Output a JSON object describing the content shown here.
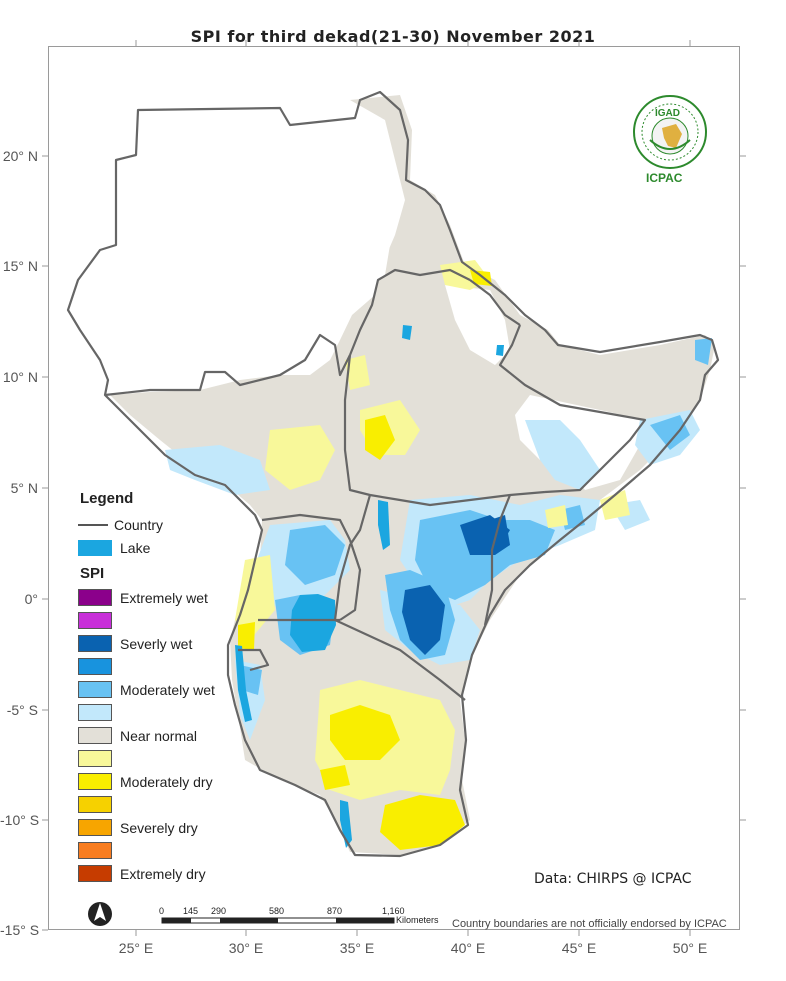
{
  "title": "SPI   for   third dekad(21-30)  November  2021",
  "lat_labels": [
    "20° N",
    "15° N",
    "10° N",
    "5° N",
    "0°",
    "-5° S",
    "-10° S",
    "-15° S"
  ],
  "lon_labels": [
    "25° E",
    "30° E",
    "35° E",
    "40° E",
    "45° E",
    "50° E"
  ],
  "legend": {
    "title": "Legend",
    "country_label": "Country",
    "lake_label": "Lake",
    "spi_title": "SPI",
    "classes": [
      {
        "label": "Extremely wet",
        "color": "#8b008b"
      },
      {
        "label": "",
        "color": "#c82fd9"
      },
      {
        "label": "Severly wet",
        "color": "#0a62b0"
      },
      {
        "label": "",
        "color": "#1893de"
      },
      {
        "label": "Moderately wet",
        "color": "#68c2f3"
      },
      {
        "label": "",
        "color": "#c2e8fb"
      },
      {
        "label": "Near normal",
        "color": "#e3e0d8"
      },
      {
        "label": "",
        "color": "#f8f89a"
      },
      {
        "label": "Moderately dry",
        "color": "#f9ee00"
      },
      {
        "label": "",
        "color": "#f6d100"
      },
      {
        "label": "Severely dry",
        "color": "#f7a500"
      },
      {
        "label": "",
        "color": "#f87d20"
      },
      {
        "label": "Extremely dry",
        "color": "#c63c00"
      }
    ]
  },
  "logo": {
    "org_short": "ICPAC",
    "badge_text": "IGAD"
  },
  "data_credit": "Data: CHIRPS @ ICPAC",
  "disclaimer": "Country boundaries are not officially endorsed by ICPAC",
  "scale_bar": {
    "ticks": [
      "0",
      "145",
      "290",
      "580",
      "870",
      "1,160"
    ],
    "unit": "Kilometers"
  },
  "north_arrow": "north-arrow-icon"
}
